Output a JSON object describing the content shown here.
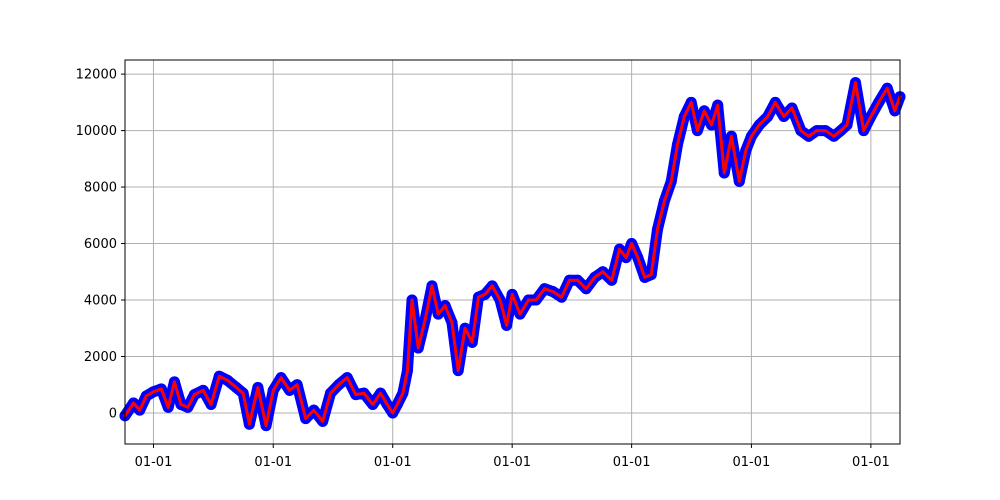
{
  "chart_data": {
    "type": "line",
    "title": "",
    "xlabel": "",
    "ylabel": "",
    "grid": true,
    "xlim": [
      "2015-10-06",
      "2022-03-31"
    ],
    "ylim": [
      -1100,
      12500
    ],
    "x_tick_dates": [
      "2016-01-01",
      "2017-01-01",
      "2018-01-01",
      "2019-01-01",
      "2020-01-01",
      "2021-01-01",
      "2022-01-01"
    ],
    "x_tick_labels": [
      "01-01",
      "01-01",
      "01-01",
      "01-01",
      "01-01",
      "01-01",
      "01-01"
    ],
    "y_ticks": [
      0,
      2000,
      4000,
      6000,
      8000,
      10000,
      12000
    ],
    "y_tick_labels": [
      "0",
      "2000",
      "4000",
      "6000",
      "8000",
      "10000",
      "12000"
    ],
    "series": [
      {
        "style": "markers",
        "color": "#0000ff",
        "x": [
          "2015-10-06",
          "2015-11-01",
          "2015-11-20",
          "2015-12-10",
          "2016-01-01",
          "2016-01-25",
          "2016-02-15",
          "2016-03-05",
          "2016-03-25",
          "2016-04-15",
          "2016-05-05",
          "2016-06-01",
          "2016-06-25",
          "2016-07-20",
          "2016-08-15",
          "2016-09-10",
          "2016-10-01",
          "2016-10-20",
          "2016-11-15",
          "2016-12-10",
          "2017-01-01",
          "2017-01-25",
          "2017-02-20",
          "2017-03-15",
          "2017-04-10",
          "2017-05-05",
          "2017-06-01",
          "2017-06-25",
          "2017-07-20",
          "2017-08-15",
          "2017-09-10",
          "2017-10-05",
          "2017-11-01",
          "2017-11-25",
          "2017-12-15",
          "2018-01-01",
          "2018-01-15",
          "2018-02-01",
          "2018-02-15",
          "2018-03-01",
          "2018-03-20",
          "2018-04-10",
          "2018-05-01",
          "2018-05-20",
          "2018-06-10",
          "2018-07-01",
          "2018-07-20",
          "2018-08-10",
          "2018-09-01",
          "2018-09-20",
          "2018-10-10",
          "2018-11-01",
          "2018-11-25",
          "2018-12-15",
          "2019-01-01",
          "2019-01-25",
          "2019-02-20",
          "2019-03-15",
          "2019-04-10",
          "2019-05-05",
          "2019-06-01",
          "2019-06-25",
          "2019-07-20",
          "2019-08-15",
          "2019-09-10",
          "2019-10-05",
          "2019-11-01",
          "2019-11-25",
          "2019-12-15",
          "2020-01-01",
          "2020-01-20",
          "2020-02-10",
          "2020-03-01",
          "2020-03-20",
          "2020-04-10",
          "2020-05-01",
          "2020-05-20",
          "2020-06-10",
          "2020-07-01",
          "2020-07-20",
          "2020-08-10",
          "2020-09-01",
          "2020-09-20",
          "2020-10-10",
          "2020-11-01",
          "2020-11-25",
          "2020-12-15",
          "2021-01-01",
          "2021-01-25",
          "2021-02-20",
          "2021-03-15",
          "2021-04-10",
          "2021-05-05",
          "2021-06-01",
          "2021-06-25",
          "2021-07-20",
          "2021-08-15",
          "2021-09-10",
          "2021-10-01",
          "2021-10-20",
          "2021-11-15",
          "2021-12-10",
          "2022-01-01",
          "2022-01-25",
          "2022-02-20",
          "2022-03-15",
          "2022-03-31"
        ],
        "y": [
          -100,
          350,
          100,
          600,
          750,
          850,
          200,
          1100,
          300,
          200,
          650,
          800,
          300,
          1300,
          1150,
          900,
          700,
          -400,
          900,
          -450,
          800,
          1250,
          800,
          1000,
          -200,
          100,
          -300,
          700,
          1000,
          1250,
          650,
          700,
          300,
          700,
          300,
          0,
          300,
          700,
          1500,
          4000,
          2300,
          3300,
          4500,
          3500,
          3800,
          3200,
          1500,
          3000,
          2500,
          4100,
          4200,
          4500,
          4000,
          3100,
          4200,
          3500,
          4000,
          4000,
          4400,
          4300,
          4100,
          4700,
          4700,
          4400,
          4800,
          5000,
          4700,
          5800,
          5500,
          6000,
          5500,
          4800,
          4900,
          6500,
          7500,
          8200,
          9500,
          10500,
          11000,
          10000,
          10700,
          10200,
          10900,
          8500,
          9800,
          8200,
          9300,
          9800,
          10200,
          10500,
          11000,
          10500,
          10800,
          10000,
          9800,
          10000,
          10000,
          9800,
          10000,
          10200,
          11700,
          10000,
          10500,
          11000,
          11500,
          10700,
          11200
        ]
      },
      {
        "style": "line",
        "color": "#ff0000",
        "x": [
          "2015-10-06",
          "2015-11-01",
          "2015-11-20",
          "2015-12-10",
          "2016-01-01",
          "2016-01-25",
          "2016-02-15",
          "2016-03-05",
          "2016-03-25",
          "2016-04-15",
          "2016-05-05",
          "2016-06-01",
          "2016-06-25",
          "2016-07-20",
          "2016-08-15",
          "2016-09-10",
          "2016-10-01",
          "2016-10-20",
          "2016-11-15",
          "2016-12-10",
          "2017-01-01",
          "2017-01-25",
          "2017-02-20",
          "2017-03-15",
          "2017-04-10",
          "2017-05-05",
          "2017-06-01",
          "2017-06-25",
          "2017-07-20",
          "2017-08-15",
          "2017-09-10",
          "2017-10-05",
          "2017-11-01",
          "2017-11-25",
          "2017-12-15",
          "2018-01-01",
          "2018-01-15",
          "2018-02-01",
          "2018-02-15",
          "2018-03-01",
          "2018-03-20",
          "2018-04-10",
          "2018-05-01",
          "2018-05-20",
          "2018-06-10",
          "2018-07-01",
          "2018-07-20",
          "2018-08-10",
          "2018-09-01",
          "2018-09-20",
          "2018-10-10",
          "2018-11-01",
          "2018-11-25",
          "2018-12-15",
          "2019-01-01",
          "2019-01-25",
          "2019-02-20",
          "2019-03-15",
          "2019-04-10",
          "2019-05-05",
          "2019-06-01",
          "2019-06-25",
          "2019-07-20",
          "2019-08-15",
          "2019-09-10",
          "2019-10-05",
          "2019-11-01",
          "2019-11-25",
          "2019-12-15",
          "2020-01-01",
          "2020-01-20",
          "2020-02-10",
          "2020-03-01",
          "2020-03-20",
          "2020-04-10",
          "2020-05-01",
          "2020-05-20",
          "2020-06-10",
          "2020-07-01",
          "2020-07-20",
          "2020-08-10",
          "2020-09-01",
          "2020-09-20",
          "2020-10-10",
          "2020-11-01",
          "2020-11-25",
          "2020-12-15",
          "2021-01-01",
          "2021-01-25",
          "2021-02-20",
          "2021-03-15",
          "2021-04-10",
          "2021-05-05",
          "2021-06-01",
          "2021-06-25",
          "2021-07-20",
          "2021-08-15",
          "2021-09-10",
          "2021-10-01",
          "2021-10-20",
          "2021-11-15",
          "2021-12-10",
          "2022-01-01",
          "2022-01-25",
          "2022-02-20",
          "2022-03-15",
          "2022-03-31"
        ],
        "y": [
          -100,
          350,
          100,
          600,
          750,
          850,
          200,
          1100,
          300,
          200,
          650,
          800,
          300,
          1300,
          1150,
          900,
          700,
          -400,
          900,
          -450,
          800,
          1250,
          800,
          1000,
          -200,
          100,
          -300,
          700,
          1000,
          1250,
          650,
          700,
          300,
          700,
          300,
          0,
          300,
          700,
          1500,
          4000,
          2300,
          3300,
          4500,
          3500,
          3800,
          3200,
          1500,
          3000,
          2500,
          4100,
          4200,
          4500,
          4000,
          3100,
          4200,
          3500,
          4000,
          4000,
          4400,
          4300,
          4100,
          4700,
          4700,
          4400,
          4800,
          5000,
          4700,
          5800,
          5500,
          6000,
          5500,
          4800,
          4900,
          6500,
          7500,
          8200,
          9500,
          10500,
          11000,
          10000,
          10700,
          10200,
          10900,
          8500,
          9800,
          8200,
          9300,
          9800,
          10200,
          10500,
          11000,
          10500,
          10800,
          10000,
          9800,
          10000,
          10000,
          9800,
          10000,
          10200,
          11700,
          10000,
          10500,
          11000,
          11500,
          10700,
          11200
        ]
      }
    ]
  }
}
